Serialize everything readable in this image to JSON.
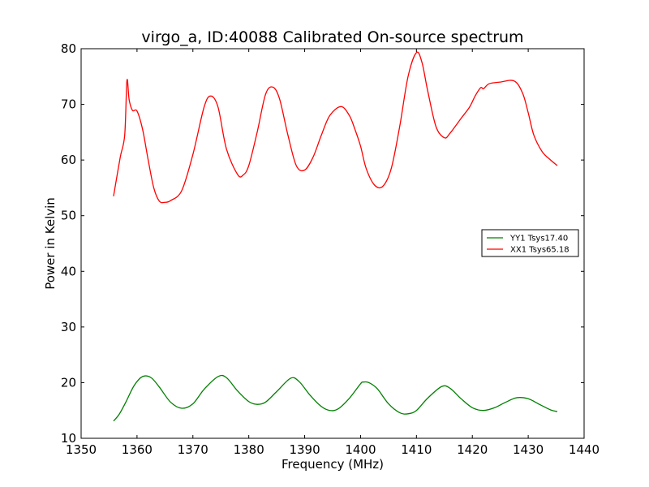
{
  "chart_data": {
    "type": "line",
    "title": "virgo_a, ID:40088 Calibrated On-source spectrum",
    "xlabel": "Frequency (MHz)",
    "ylabel": "Power in Kelvin",
    "xlim": [
      1350,
      1440
    ],
    "ylim": [
      10,
      80
    ],
    "xticks": [
      1350,
      1360,
      1370,
      1380,
      1390,
      1400,
      1410,
      1420,
      1430,
      1440
    ],
    "yticks": [
      10,
      20,
      30,
      40,
      50,
      60,
      70,
      80
    ],
    "grid": false,
    "legend_position": "center-right",
    "series": [
      {
        "name": "YY1 Tsys17.40",
        "color": "#008000",
        "x": [
          1355.8,
          1356.8,
          1358,
          1359.5,
          1361,
          1362.5,
          1364,
          1366,
          1368,
          1370,
          1372,
          1374.5,
          1376,
          1378,
          1380,
          1381.5,
          1383,
          1385,
          1387.5,
          1389,
          1391,
          1393,
          1394.5,
          1396,
          1398,
          1400,
          1400.5,
          1401.5,
          1403,
          1405,
          1407,
          1408.5,
          1410,
          1412,
          1414.5,
          1416,
          1418,
          1420,
          1422,
          1424,
          1426,
          1428,
          1430,
          1432,
          1434,
          1435.2
        ],
        "y": [
          13.1,
          14.3,
          16.5,
          19.5,
          21.1,
          20.9,
          19.2,
          16.5,
          15.4,
          16.2,
          18.8,
          21.1,
          20.9,
          18.5,
          16.6,
          16.1,
          16.5,
          18.4,
          20.8,
          20.2,
          17.7,
          15.7,
          15.0,
          15.3,
          17.2,
          19.8,
          20.1,
          20.0,
          18.9,
          16.2,
          14.6,
          14.4,
          15.0,
          17.2,
          19.3,
          19.0,
          17.1,
          15.5,
          15.0,
          15.5,
          16.5,
          17.3,
          17.1,
          16.1,
          15.1,
          14.8
        ]
      },
      {
        "name": "XX1 Tsys65.18",
        "color": "#ff0000",
        "x": [
          1355.8,
          1357,
          1357.8,
          1358.2,
          1358.6,
          1359.2,
          1360,
          1361,
          1362,
          1363,
          1364,
          1365,
          1366,
          1368,
          1370,
          1372,
          1373.2,
          1374.5,
          1376,
          1378,
          1379,
          1380,
          1381.5,
          1383,
          1384.3,
          1385.5,
          1387,
          1388.5,
          1390,
          1391.5,
          1393,
          1394.5,
          1396.5,
          1398,
          1399,
          1400,
          1401,
          1402.5,
          1404,
          1405.5,
          1407,
          1408.5,
          1410,
          1411,
          1412,
          1413.5,
          1415,
          1416,
          1418,
          1419.5,
          1420.5,
          1421.5,
          1422,
          1423,
          1425,
          1427.5,
          1429,
          1430,
          1431,
          1432.5,
          1434,
          1435.2
        ],
        "y": [
          53.5,
          60.5,
          64.5,
          74.3,
          70.8,
          68.9,
          68.8,
          65.5,
          60.0,
          55.0,
          52.6,
          52.4,
          52.7,
          54.5,
          61.0,
          69.5,
          71.5,
          69.5,
          62.0,
          57.4,
          57.3,
          59.0,
          65.0,
          71.8,
          73.1,
          71.0,
          64.5,
          59.0,
          58.2,
          60.5,
          64.5,
          68.0,
          69.6,
          68.0,
          65.5,
          62.5,
          58.5,
          55.5,
          55.3,
          58.5,
          66.0,
          75.0,
          79.3,
          77.5,
          72.5,
          66.0,
          64.0,
          64.8,
          67.5,
          69.5,
          71.5,
          73.0,
          72.8,
          73.7,
          74.0,
          74.2,
          72.0,
          68.5,
          64.5,
          61.5,
          60.0,
          59.0
        ]
      }
    ]
  }
}
